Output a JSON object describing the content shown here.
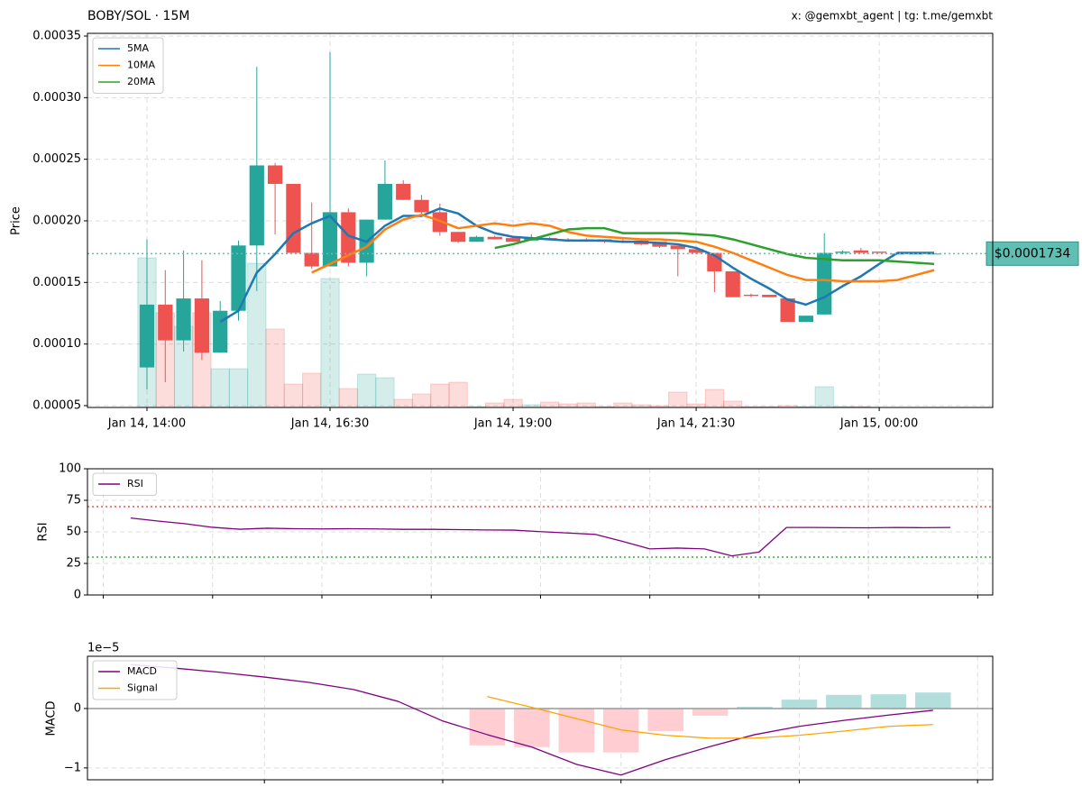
{
  "chart_data": [
    {
      "type": "candlestick",
      "title": "BOBY/SOL · 15M",
      "credit": "x: @gemxbt_agent | tg: t.me/gemxbt",
      "ylabel": "Price",
      "categories": [
        "Jan 14, 14:00",
        null,
        null,
        null,
        null,
        null,
        null,
        null,
        null,
        null,
        "Jan 14, 16:30",
        null,
        null,
        null,
        null,
        null,
        null,
        null,
        null,
        null,
        "Jan 14, 19:00",
        null,
        null,
        null,
        null,
        null,
        null,
        null,
        null,
        null,
        "Jan 14, 21:30",
        null,
        null,
        null,
        null,
        null,
        null,
        null,
        null,
        null,
        "Jan 15, 00:00",
        null,
        null,
        null
      ],
      "open": [
        8.1e-05,
        0.000132,
        0.000103,
        0.000137,
        9.3e-05,
        0.000127,
        0.00018,
        0.000245,
        0.00023,
        0.000174,
        0.000163,
        0.000207,
        0.000166,
        0.000201,
        0.00023,
        0.000217,
        0.000207,
        0.000191,
        0.000183,
        0.000187,
        0.000186,
        0.000184,
        0.000186,
        0.000185,
        0.000185,
        0.000185,
        0.000184,
        0.000184,
        0.000183,
        0.00018,
        0.000177,
        0.000174,
        0.000159,
        0.00014,
        0.00014,
        0.000137,
        0.000118,
        0.000124,
        0.000174,
        0.000176,
        0.000175,
        0.0001734,
        0.0001734,
        0.0001734
      ],
      "high": [
        0.000185,
        0.00016,
        0.000176,
        0.000168,
        0.000135,
        0.000184,
        0.000325,
        0.000247,
        0.00023,
        0.000215,
        0.000337,
        0.00021,
        0.000201,
        0.000249,
        0.000233,
        0.000221,
        0.000214,
        0.000191,
        0.000188,
        0.000188,
        0.000187,
        0.000189,
        0.000187,
        0.000186,
        0.000186,
        0.000185,
        0.000185,
        0.000184,
        0.000183,
        0.00018,
        0.000177,
        0.000174,
        0.000159,
        0.000141,
        0.00014,
        0.000137,
        0.000123,
        0.00019,
        0.000176,
        0.000178,
        0.000175,
        0.0001734,
        0.0001734,
        0.0001734
      ],
      "low": [
        6.3e-05,
        6.9e-05,
        9.4e-05,
        8.7e-05,
        9.3e-05,
        0.000119,
        0.000143,
        0.000189,
        0.000174,
        0.000161,
        0.000163,
        0.000163,
        0.000155,
        0.000201,
        0.000217,
        0.000204,
        0.000188,
        0.000182,
        0.000183,
        0.000185,
        0.000183,
        0.000184,
        0.000184,
        0.000183,
        0.000183,
        0.000182,
        0.000182,
        0.00018,
        0.000178,
        0.000155,
        0.000173,
        0.000142,
        0.000138,
        0.000138,
        0.000138,
        0.000118,
        0.000118,
        0.000124,
        0.000173,
        0.000174,
        0.000174,
        0.0001734,
        0.0001734,
        0.0001734
      ],
      "close": [
        0.000132,
        0.000103,
        0.000137,
        9.3e-05,
        0.000127,
        0.00018,
        0.000245,
        0.00023,
        0.000174,
        0.000163,
        0.000207,
        0.000166,
        0.000201,
        0.00023,
        0.000217,
        0.000207,
        0.000191,
        0.000183,
        0.000187,
        0.000185,
        0.000183,
        0.000186,
        0.000185,
        0.000184,
        0.000184,
        0.000183,
        0.000183,
        0.000181,
        0.000179,
        0.000177,
        0.000174,
        0.000159,
        0.000138,
        0.000139,
        0.000138,
        0.000118,
        0.000123,
        0.000174,
        0.000175,
        0.000174,
        0.000174,
        0.0001734,
        0.0001734,
        0.0001734
      ],
      "volume": [
        166,
        105,
        90,
        105,
        43,
        43,
        160,
        87,
        26,
        38,
        143,
        21,
        37,
        33,
        9,
        15,
        26,
        28,
        1,
        5,
        9,
        3,
        6,
        4,
        5,
        1,
        5,
        3,
        2,
        17,
        4,
        20,
        7,
        1,
        1,
        2,
        1,
        23,
        1,
        1,
        0,
        0,
        0,
        0
      ],
      "up_color": "#26a69a",
      "down_color": "#ef5350",
      "series": [
        {
          "name": "5MA",
          "color": "#1f77b4",
          "values": [
            null,
            null,
            null,
            null,
            0.000118,
            0.000127,
            0.000158,
            0.000173,
            0.00019,
            0.000198,
            0.000204,
            0.000188,
            0.000183,
            0.000196,
            0.000204,
            0.000204,
            0.00021,
            0.000206,
            0.000196,
            0.00019,
            0.000187,
            0.000186,
            0.000185,
            0.000184,
            0.000184,
            0.000184,
            0.000183,
            0.000183,
            0.000182,
            0.000181,
            0.000178,
            0.000172,
            0.000162,
            0.000153,
            0.000145,
            0.000136,
            0.000132,
            0.000138,
            0.000147,
            0.000155,
            0.000165,
            0.000174,
            0.000174,
            0.000174
          ]
        },
        {
          "name": "10MA",
          "color": "#ff7f0e",
          "values": [
            null,
            null,
            null,
            null,
            null,
            null,
            null,
            null,
            null,
            0.000158,
            0.000165,
            0.000172,
            0.000179,
            0.000193,
            0.000201,
            0.000205,
            0.0002,
            0.000194,
            0.000196,
            0.000198,
            0.000196,
            0.000198,
            0.000196,
            0.000191,
            0.000188,
            0.000187,
            0.000186,
            0.000185,
            0.000185,
            0.000184,
            0.000183,
            0.000179,
            0.000174,
            0.000168,
            0.000162,
            0.000156,
            0.000152,
            0.000152,
            0.000151,
            0.000151,
            0.000151,
            0.000152,
            0.000156,
            0.00016
          ]
        },
        {
          "name": "20MA",
          "color": "#2ca02c",
          "values": [
            null,
            null,
            null,
            null,
            null,
            null,
            null,
            null,
            null,
            null,
            null,
            null,
            null,
            null,
            null,
            null,
            null,
            null,
            null,
            0.000178,
            0.000181,
            0.000185,
            0.000189,
            0.000193,
            0.000194,
            0.000194,
            0.00019,
            0.00019,
            0.00019,
            0.00019,
            0.000189,
            0.000188,
            0.000185,
            0.000181,
            0.000177,
            0.000173,
            0.00017,
            0.000169,
            0.000168,
            0.000168,
            0.000168,
            0.000167,
            0.000166,
            0.000165
          ]
        }
      ],
      "current_price": 0.0001734,
      "current_price_label": "$0.0001734",
      "current_price_color": "#5fbfb3",
      "xlim": [
        -3.25,
        46.2
      ],
      "ylim": [
        4.85e-05,
        0.0003522
      ],
      "yticks": [
        5e-05,
        {
          "value": 0.0001,
          "label": "0.00010"
        },
        0.00015,
        {
          "value": 0.0002,
          "label": "0.00020"
        },
        0.00025,
        {
          "value": 0.0003,
          "label": "0.00030"
        },
        0.00035
      ],
      "grid": true,
      "legend": "upper left"
    },
    {
      "type": "line",
      "ylabel": "RSI",
      "series": [
        {
          "name": "RSI",
          "color": "#800080",
          "values": [
            61,
            58.6,
            56.4,
            53.6,
            52.1,
            52.9,
            52.5,
            52.3,
            52.5,
            52.3,
            52,
            52,
            51.8,
            51.5,
            51.4,
            50.2,
            49.1,
            48,
            42.5,
            36.5,
            37.2,
            36.5,
            31,
            34,
            53.5,
            53.5,
            53.3,
            53.2,
            53.5,
            53.3,
            53.5
          ]
        }
      ],
      "hlines": [
        {
          "value": 70,
          "color": "#f05050"
        },
        {
          "value": 30,
          "color": "#3cb043"
        }
      ],
      "xlim": [
        -1.58,
        31.55
      ],
      "xticks": [
        -1,
        3,
        7,
        11,
        15,
        19,
        23,
        27,
        31
      ],
      "ylim": [
        0,
        100
      ],
      "yticks": [
        0,
        25,
        50,
        75,
        100
      ],
      "grid": true,
      "legend": "upper left"
    },
    {
      "type": "line",
      "ylabel": "MACD",
      "y_scale_label": "1e−5",
      "series": [
        {
          "name": "MACD",
          "color": "#800080",
          "values": [
            7.4e-06,
            6.8e-06,
            6.1e-06,
            5.3e-06,
            4.4e-06,
            3.2e-06,
            1.2e-06,
            -2.1e-06,
            -4.4e-06,
            -6.5e-06,
            -9.4e-06,
            -1.12e-05,
            -8.6e-06,
            -6.4e-06,
            -4.4e-06,
            -3e-06,
            -2e-06,
            -1.1e-06,
            -3e-07
          ]
        },
        {
          "name": "Signal",
          "color": "#ffa500",
          "values": [
            null,
            null,
            null,
            null,
            null,
            null,
            null,
            null,
            2e-06,
            2e-07,
            -1.7e-06,
            -3.6e-06,
            -4.5e-06,
            -5e-06,
            -5e-06,
            -4.5e-06,
            -3.8e-06,
            -3e-06,
            -2.7e-06
          ]
        }
      ],
      "histogram": [
        null,
        null,
        null,
        null,
        null,
        null,
        null,
        null,
        -6.2e-06,
        -6.5e-06,
        -7.4e-06,
        -7.4e-06,
        -3.8e-06,
        -1.2e-06,
        3e-07,
        1.5e-06,
        2.3e-06,
        2.4e-06,
        2.7e-06
      ],
      "up_color": "#b2dfdb",
      "down_color": "#ffcdd2",
      "xlim": [
        -0.97,
        19.34
      ],
      "xticks": [
        3,
        7,
        11,
        15,
        19
      ],
      "ylim": [
        -1.2e-05,
        8.8e-06
      ],
      "yticks": [
        {
          "value": -1e-05,
          "label": "−1"
        },
        0
      ],
      "grid": true,
      "legend": "upper left"
    }
  ]
}
